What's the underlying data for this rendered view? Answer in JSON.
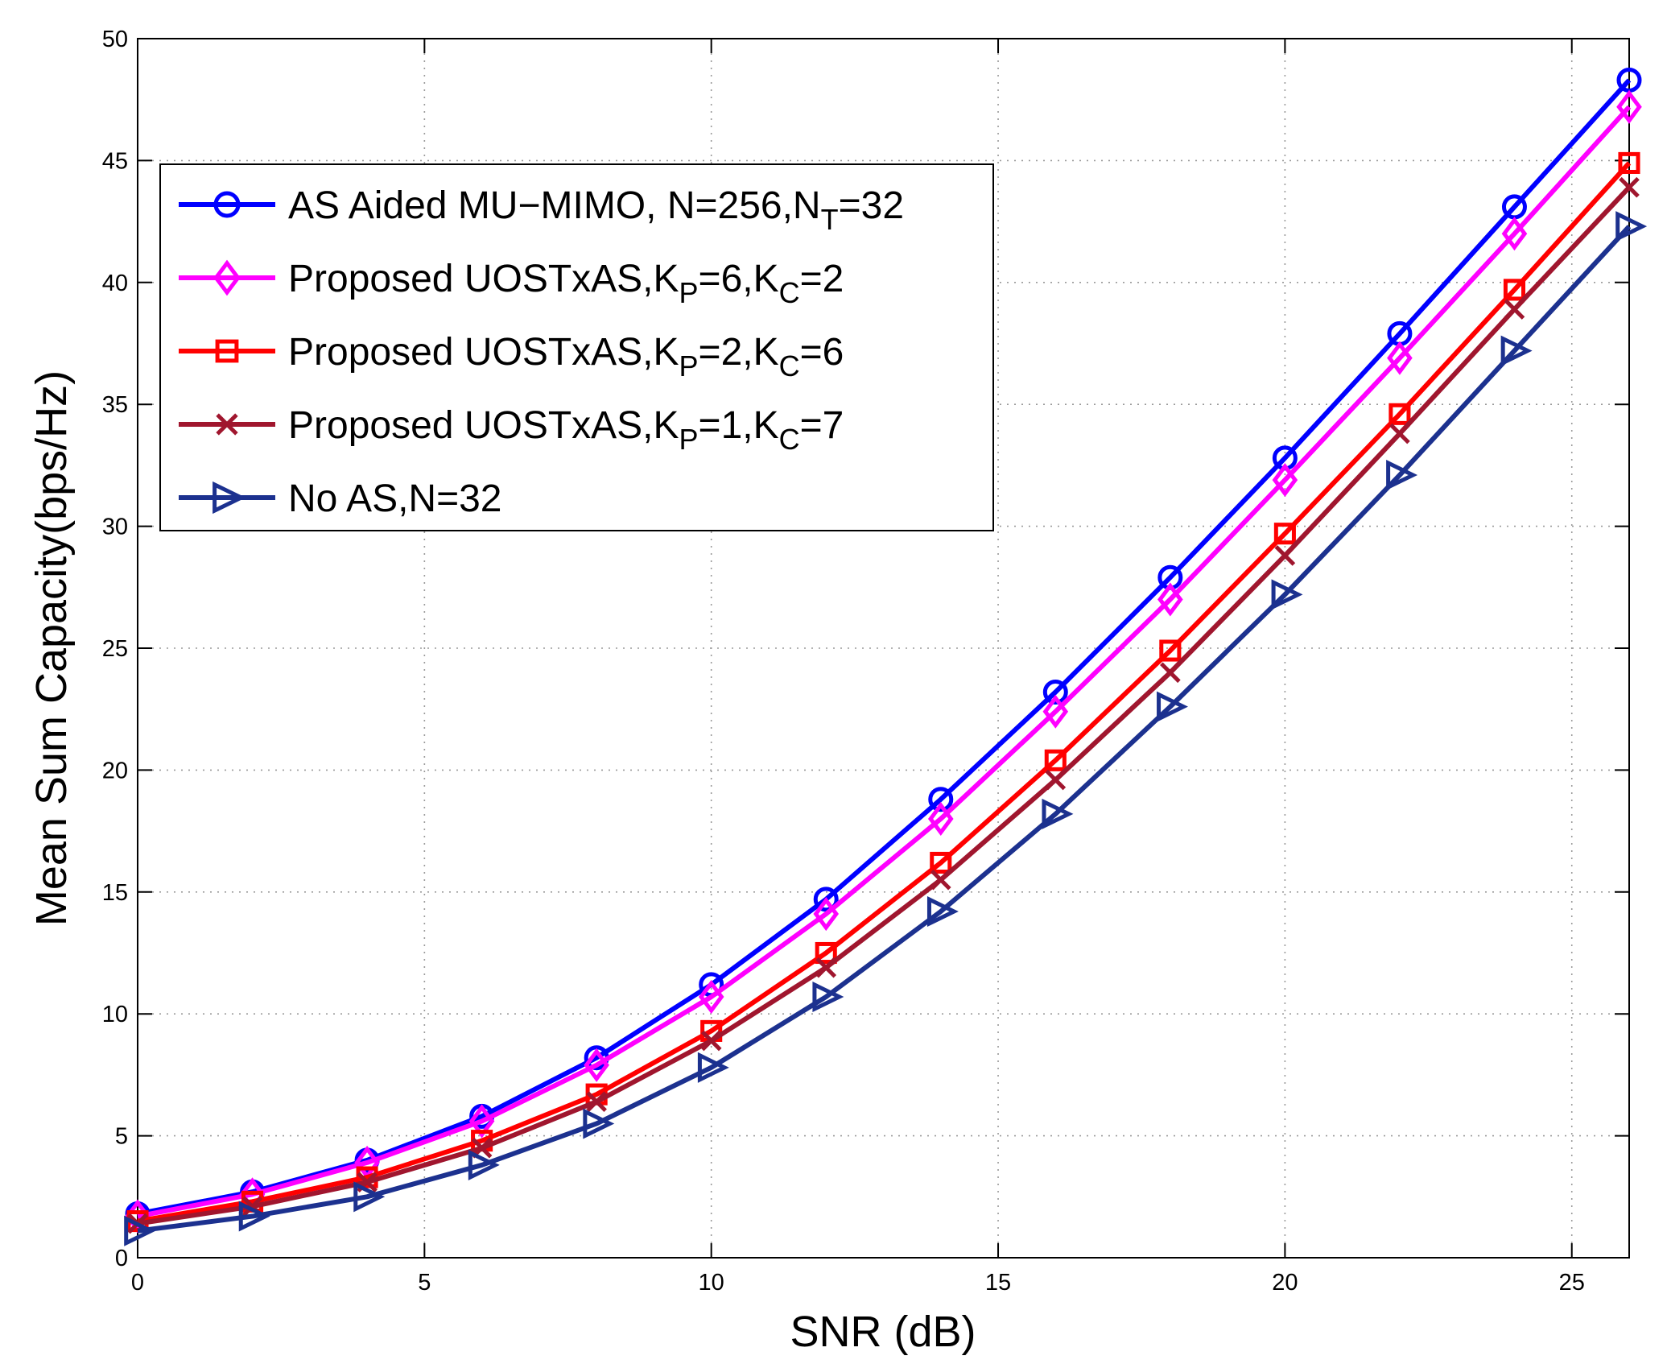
{
  "chart_data": {
    "type": "line",
    "title": "",
    "xlabel": "SNR (dB)",
    "ylabel": "Mean Sum Capacity(bps/Hz)",
    "xlim": [
      0,
      26
    ],
    "ylim": [
      0,
      50
    ],
    "x_ticks": [
      0,
      5,
      10,
      15,
      20,
      25
    ],
    "y_ticks": [
      0,
      5,
      10,
      15,
      20,
      25,
      30,
      35,
      40,
      45,
      50
    ],
    "grid": true,
    "legend_position": "upper-left",
    "x": [
      0,
      2,
      4,
      6,
      8,
      10,
      12,
      14,
      16,
      18,
      20,
      22,
      24,
      26
    ],
    "series": [
      {
        "name": "AS Aided MU−MIMO, N=256,N",
        "name_sub": "T",
        "name_tail": "=32",
        "color": "#0000ff",
        "marker": "circle",
        "values": [
          1.8,
          2.7,
          4.0,
          5.8,
          8.2,
          11.2,
          14.7,
          18.8,
          23.2,
          27.9,
          32.8,
          37.9,
          43.1,
          48.3
        ]
      },
      {
        "name": "Proposed UOSTxAS,K",
        "name_sub": "P",
        "name_mid": "=6,K",
        "name_sub2": "C",
        "name_tail": "=2",
        "color": "#ff00ff",
        "marker": "diamond",
        "values": [
          1.7,
          2.6,
          3.9,
          5.6,
          7.9,
          10.7,
          14.1,
          18.0,
          22.4,
          27.0,
          31.9,
          36.9,
          42.0,
          47.2
        ]
      },
      {
        "name": "Proposed UOSTxAS,K",
        "name_sub": "P",
        "name_mid": "=2,K",
        "name_sub2": "C",
        "name_tail": "=6",
        "color": "#ff0000",
        "marker": "square",
        "values": [
          1.5,
          2.3,
          3.3,
          4.8,
          6.7,
          9.3,
          12.5,
          16.2,
          20.4,
          24.9,
          29.7,
          34.6,
          39.7,
          44.9
        ]
      },
      {
        "name": "Proposed UOSTxAS,K",
        "name_sub": "P",
        "name_mid": "=1,K",
        "name_sub2": "C",
        "name_tail": "=7",
        "color": "#a0162e",
        "marker": "x",
        "values": [
          1.4,
          2.1,
          3.1,
          4.5,
          6.4,
          8.9,
          11.9,
          15.5,
          19.6,
          24.0,
          28.8,
          33.8,
          38.9,
          43.9
        ]
      },
      {
        "name": "No AS,N=32",
        "color": "#1c318f",
        "marker": "triangle-right",
        "values": [
          1.1,
          1.7,
          2.5,
          3.8,
          5.5,
          7.8,
          10.7,
          14.2,
          18.2,
          22.6,
          27.2,
          32.1,
          37.2,
          42.3
        ]
      }
    ]
  }
}
